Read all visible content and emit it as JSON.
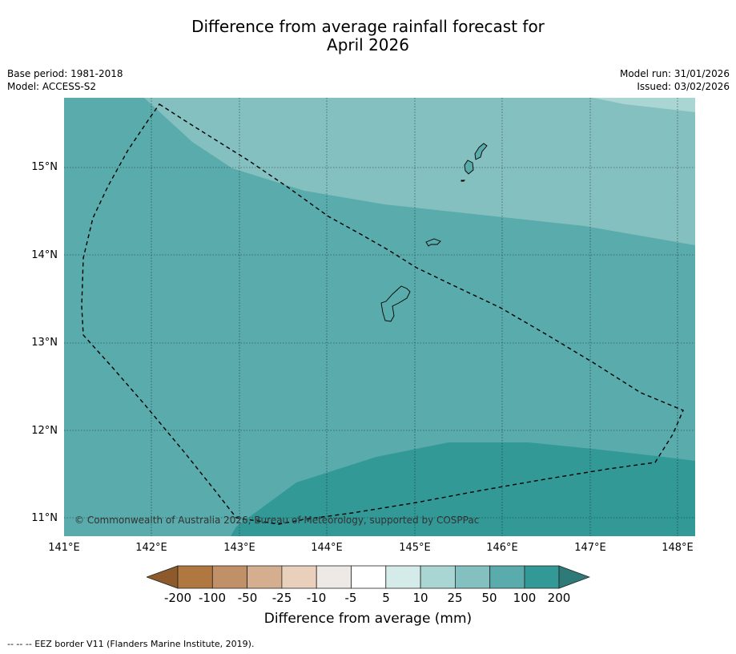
{
  "title": {
    "line1": "Difference from average rainfall forecast for",
    "line2": "April 2026"
  },
  "meta_left": {
    "base_period": "Base period: 1981-2018",
    "model": "Model: ACCESS-S2"
  },
  "meta_right": {
    "model_run": "Model run: 31/01/2026",
    "issued": "Issued: 03/02/2026"
  },
  "map": {
    "x_ticks": [
      "141°E",
      "142°E",
      "143°E",
      "144°E",
      "145°E",
      "146°E",
      "147°E",
      "148°E"
    ],
    "y_ticks": [
      "15°N",
      "14°N",
      "13°N",
      "12°N",
      "11°N"
    ],
    "lon_range": [
      141.0,
      148.2
    ],
    "lat_range": [
      10.8,
      15.8
    ],
    "copyright": "© Commonwealth of Australia 2026, Bureau of Meteorology, supported by COSPPac",
    "colors": {
      "band_10_25": "#a9d5d3",
      "band_25_50": "#84c0bf",
      "band_50_100": "#5aabac",
      "band_100_200": "#339997"
    }
  },
  "colorbar": {
    "labels": [
      "-200",
      "-100",
      "-50",
      "-25",
      "-10",
      "-5",
      "5",
      "10",
      "25",
      "50",
      "100",
      "200"
    ],
    "colors": [
      "#8c5a2b",
      "#b07840",
      "#c09068",
      "#d4ae8e",
      "#e8d0bc",
      "#efe9e5",
      "#ffffff",
      "#d4ebea",
      "#a9d5d3",
      "#84c0bf",
      "#5aabac",
      "#339997",
      "#2d7a78"
    ],
    "title": "Difference from average (mm)"
  },
  "legend_note": "-- -- -- EEZ border V11 (Flanders Marine Institute, 2019)."
}
